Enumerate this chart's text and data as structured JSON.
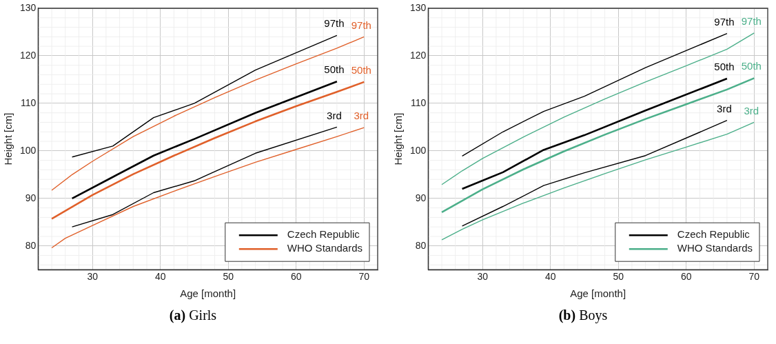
{
  "chart_data": [
    {
      "type": "line",
      "title": "(a) Girls",
      "xlabel": "Age [month]",
      "ylabel": "Height [cm]",
      "xlim": [
        22,
        72
      ],
      "ylim": [
        75,
        130
      ],
      "xticks": [
        30,
        40,
        50,
        60,
        70
      ],
      "yticks": [
        80,
        90,
        100,
        110,
        120,
        130
      ],
      "grid": true,
      "legend": "bottom right",
      "line_style": "solid",
      "marker": "none",
      "series": [
        {
          "color": "#000000",
          "x": [
            27,
            33,
            39,
            45,
            54,
            66
          ],
          "values": [
            98.7,
            101,
            107,
            110,
            117,
            124.3
          ]
        },
        {
          "name": "Czech Republic",
          "color": "#000000",
          "x": [
            27,
            33,
            39,
            45,
            54,
            66
          ],
          "values": [
            90,
            94.5,
            99,
            102.5,
            108,
            114.6
          ]
        },
        {
          "color": "#000000",
          "x": [
            27,
            33,
            39,
            45,
            54,
            66
          ],
          "values": [
            84,
            86.6,
            91.2,
            93.7,
            99.5,
            105
          ]
        },
        {
          "color": "#e0602a",
          "x": [
            24,
            27,
            30,
            36,
            42,
            48,
            54,
            60,
            66,
            70
          ],
          "values": [
            91.7,
            95,
            97.8,
            103,
            107.3,
            111.2,
            114.9,
            118.3,
            121.6,
            124
          ]
        },
        {
          "name": "WHO Standards",
          "color": "#e0602a",
          "x": [
            24,
            30,
            36,
            42,
            48,
            54,
            60,
            66,
            70
          ],
          "values": [
            85.7,
            90.7,
            95.1,
            99,
            102.7,
            106.2,
            109.4,
            112.4,
            114.5
          ]
        },
        {
          "color": "#e0602a",
          "x": [
            24,
            26,
            30,
            36,
            42,
            48,
            54,
            60,
            66,
            70
          ],
          "values": [
            79.6,
            81.6,
            84.3,
            88.3,
            91.5,
            94.6,
            97.6,
            100.3,
            103,
            104.9
          ]
        }
      ],
      "annotations": [
        "97th",
        "50th",
        "3rd",
        "97th",
        "50th",
        "3rd"
      ]
    },
    {
      "type": "line",
      "title": "(b) Boys",
      "xlabel": "Age [month]",
      "ylabel": "Height [cm]",
      "xlim": [
        22,
        72
      ],
      "ylim": [
        75,
        130
      ],
      "xticks": [
        30,
        40,
        50,
        60,
        70
      ],
      "yticks": [
        80,
        90,
        100,
        110,
        120,
        130
      ],
      "grid": true,
      "legend": "bottom right",
      "line_style": "solid",
      "marker": "none",
      "series": [
        {
          "color": "#000000",
          "x": [
            27,
            33,
            39,
            45,
            54,
            66
          ],
          "values": [
            98.9,
            104,
            108.3,
            111.5,
            117.5,
            124.7
          ]
        },
        {
          "name": "Czech Republic",
          "color": "#000000",
          "x": [
            27,
            33,
            39,
            45,
            54,
            66
          ],
          "values": [
            92,
            95.5,
            100.2,
            103.3,
            108.5,
            115.2
          ]
        },
        {
          "color": "#000000",
          "x": [
            27,
            33,
            39,
            45,
            54,
            66
          ],
          "values": [
            84.2,
            88.3,
            92.7,
            95.4,
            99,
            106.4
          ]
        },
        {
          "color": "#4caf8a",
          "x": [
            24,
            27,
            30,
            36,
            42,
            48,
            54,
            60,
            66,
            70
          ],
          "values": [
            92.9,
            95.8,
            98.4,
            102.9,
            107.1,
            110.9,
            114.5,
            117.9,
            121.4,
            124.8
          ]
        },
        {
          "name": "WHO Standards",
          "color": "#4caf8a",
          "x": [
            24,
            30,
            36,
            42,
            48,
            54,
            60,
            66,
            70
          ],
          "values": [
            87.1,
            91.9,
            96.1,
            99.9,
            103.4,
            106.7,
            109.8,
            112.9,
            115.3
          ]
        },
        {
          "color": "#4caf8a",
          "x": [
            24,
            27,
            30,
            36,
            42,
            48,
            54,
            60,
            66,
            70
          ],
          "values": [
            81.3,
            83.5,
            85.5,
            89,
            92.2,
            95.2,
            98.1,
            100.8,
            103.5,
            106
          ]
        }
      ],
      "annotations": [
        "97th",
        "50th",
        "3rd",
        "97th",
        "50th",
        "3rd"
      ]
    }
  ]
}
